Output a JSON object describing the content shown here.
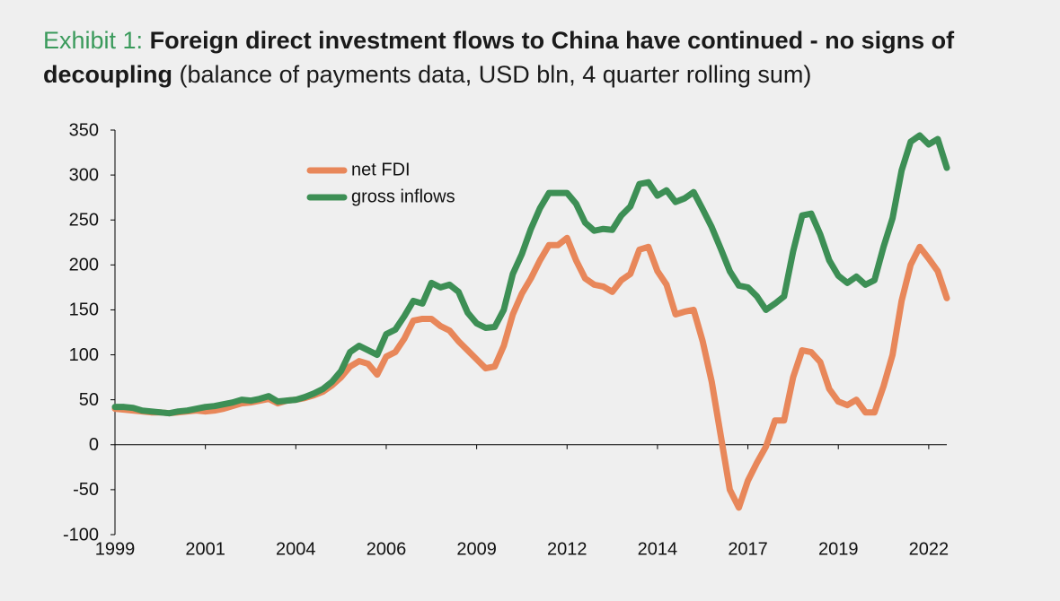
{
  "chart_data": {
    "type": "line",
    "title_label": "Exhibit 1:",
    "title": "Foreign direct investment flows to China have continued - no signs of decoupling",
    "subtitle": "(balance of payments data, USD bln, 4 quarter rolling sum)",
    "categories": [
      "1999",
      null,
      null,
      null,
      null,
      null,
      null,
      null,
      null,
      null,
      "2001",
      null,
      null,
      null,
      null,
      null,
      null,
      null,
      null,
      null,
      "2004",
      null,
      null,
      null,
      null,
      null,
      null,
      null,
      null,
      null,
      "2006",
      null,
      null,
      null,
      null,
      null,
      null,
      null,
      null,
      null,
      "2009",
      null,
      null,
      null,
      null,
      null,
      null,
      null,
      null,
      null,
      "2012",
      null,
      null,
      null,
      null,
      null,
      null,
      null,
      null,
      null,
      "2014",
      null,
      null,
      null,
      null,
      null,
      null,
      null,
      null,
      null,
      "2017",
      null,
      null,
      null,
      null,
      null,
      null,
      null,
      null,
      null,
      "2019",
      null,
      null,
      null,
      null,
      null,
      null,
      null,
      null,
      null,
      "2022",
      null,
      null
    ],
    "series": [
      {
        "name": "net FDI",
        "color": "#e8875a",
        "values": [
          40,
          39,
          38,
          37,
          36,
          36,
          35,
          36,
          37,
          38,
          37,
          38,
          40,
          43,
          46,
          47,
          49,
          51,
          46,
          49,
          50,
          52,
          55,
          59,
          66,
          75,
          87,
          93,
          90,
          78,
          98,
          103,
          118,
          138,
          140,
          140,
          132,
          127,
          115,
          105,
          95,
          85,
          87,
          110,
          145,
          168,
          185,
          205,
          222,
          222,
          230,
          205,
          185,
          178,
          176,
          170,
          183,
          190,
          217,
          220,
          193,
          178,
          145,
          148,
          150,
          115,
          70,
          10,
          -50,
          -70,
          -40,
          -20,
          -2,
          27,
          27,
          75,
          105,
          103,
          92,
          62,
          48,
          44,
          50,
          36,
          36,
          65,
          100,
          160,
          200,
          220,
          207,
          193,
          163
        ]
      },
      {
        "name": "gross inflows",
        "color": "#3d8f55",
        "values": [
          42,
          42,
          41,
          38,
          37,
          36,
          35,
          37,
          38,
          40,
          42,
          43,
          45,
          47,
          50,
          49,
          51,
          54,
          48,
          49,
          50,
          53,
          57,
          62,
          70,
          82,
          103,
          110,
          105,
          100,
          123,
          128,
          143,
          160,
          157,
          180,
          175,
          178,
          170,
          147,
          135,
          130,
          131,
          150,
          190,
          212,
          240,
          263,
          280,
          280,
          280,
          268,
          247,
          238,
          240,
          239,
          255,
          265,
          290,
          292,
          277,
          283,
          270,
          274,
          281,
          262,
          242,
          218,
          193,
          177,
          175,
          165,
          150,
          157,
          165,
          215,
          255,
          257,
          234,
          205,
          188,
          180,
          187,
          178,
          183,
          220,
          252,
          305,
          337,
          344,
          334,
          340,
          308
        ]
      }
    ],
    "ylim": [
      -100,
      350
    ],
    "yticks": [
      -100,
      -50,
      0,
      50,
      100,
      150,
      200,
      250,
      300,
      350
    ],
    "legend": "upper-left"
  }
}
